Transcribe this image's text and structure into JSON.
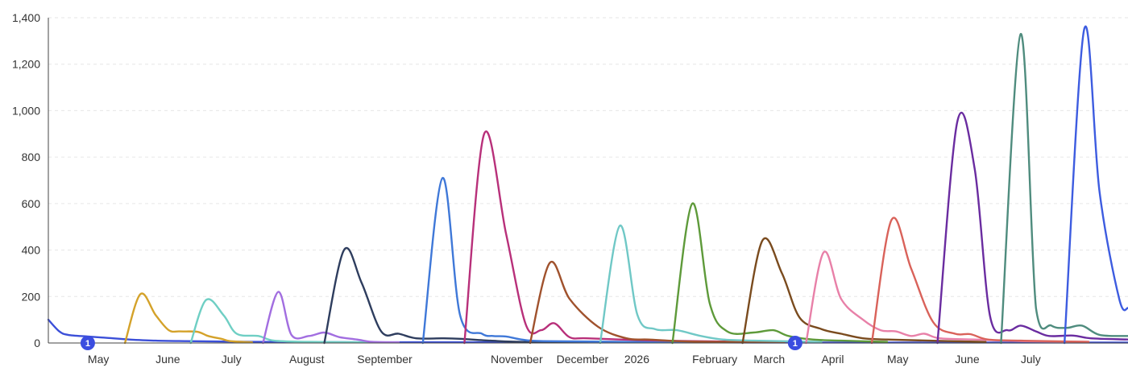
{
  "chart_data": {
    "type": "line",
    "title": "",
    "xlabel": "",
    "ylabel": "",
    "x_range": [
      "2025-04-13",
      "2026-08-19"
    ],
    "ylim": [
      0,
      1400
    ],
    "y_ticks": [
      0,
      200,
      400,
      600,
      800,
      1000,
      1200,
      1400
    ],
    "y_tick_labels": [
      "0",
      "200",
      "400",
      "600",
      "800",
      "1,000",
      "1,200",
      "1,400"
    ],
    "grid": true,
    "x_ticks": [
      {
        "date": "2025-05-01",
        "label": "May"
      },
      {
        "date": "2025-06-01",
        "label": "June"
      },
      {
        "date": "2025-07-01",
        "label": "July"
      },
      {
        "date": "2025-08-01",
        "label": "August"
      },
      {
        "date": "2025-09-01",
        "label": "September"
      },
      {
        "date": "2025-11-01",
        "label": "November"
      },
      {
        "date": "2025-12-01",
        "label": "December"
      },
      {
        "date": "2026-01-01",
        "label": "2026"
      },
      {
        "date": "2026-02-01",
        "label": "February"
      },
      {
        "date": "2026-03-01",
        "label": "March"
      },
      {
        "date": "2026-04-01",
        "label": "April"
      },
      {
        "date": "2026-05-01",
        "label": "May"
      },
      {
        "date": "2026-06-01",
        "label": "June"
      },
      {
        "date": "2026-07-01",
        "label": "July"
      }
    ],
    "markers": [
      {
        "date": "2025-05-01",
        "label": "1"
      },
      {
        "date": "2026-03-20",
        "label": "1"
      }
    ],
    "series": [
      {
        "color": "#3b4fd8",
        "points": [
          [
            "2025-04-13",
            100
          ],
          [
            "2025-04-18",
            50
          ],
          [
            "2025-04-22",
            35
          ],
          [
            "2025-05-01",
            28
          ],
          [
            "2025-05-10",
            22
          ],
          [
            "2025-05-20",
            15
          ],
          [
            "2025-06-01",
            10
          ],
          [
            "2025-06-15",
            8
          ],
          [
            "2025-07-15",
            5
          ],
          [
            "2025-09-01",
            3
          ],
          [
            "2025-11-01",
            3
          ],
          [
            "2026-03-01",
            2
          ],
          [
            "2026-08-19",
            2
          ]
        ]
      },
      {
        "color": "#d4a22a",
        "points": [
          [
            "2025-05-18",
            0
          ],
          [
            "2025-05-25",
            210
          ],
          [
            "2025-06-01",
            120
          ],
          [
            "2025-06-07",
            55
          ],
          [
            "2025-06-12",
            50
          ],
          [
            "2025-06-20",
            48
          ],
          [
            "2025-06-25",
            30
          ],
          [
            "2025-07-01",
            18
          ],
          [
            "2025-07-05",
            8
          ],
          [
            "2025-07-15",
            3
          ]
        ]
      },
      {
        "color": "#6fcfc4",
        "points": [
          [
            "2025-06-17",
            0
          ],
          [
            "2025-06-24",
            185
          ],
          [
            "2025-07-02",
            120
          ],
          [
            "2025-07-08",
            40
          ],
          [
            "2025-07-18",
            30
          ],
          [
            "2025-07-25",
            10
          ],
          [
            "2025-08-10",
            5
          ],
          [
            "2025-09-10",
            3
          ]
        ]
      },
      {
        "color": "#a26ee0",
        "points": [
          [
            "2025-07-20",
            0
          ],
          [
            "2025-07-27",
            220
          ],
          [
            "2025-08-02",
            35
          ],
          [
            "2025-08-10",
            30
          ],
          [
            "2025-08-17",
            45
          ],
          [
            "2025-08-24",
            25
          ],
          [
            "2025-09-01",
            15
          ],
          [
            "2025-09-08",
            5
          ],
          [
            "2025-09-20",
            3
          ]
        ]
      },
      {
        "color": "#2e3d5e",
        "points": [
          [
            "2025-08-17",
            0
          ],
          [
            "2025-08-26",
            400
          ],
          [
            "2025-09-03",
            260
          ],
          [
            "2025-09-12",
            50
          ],
          [
            "2025-09-20",
            40
          ],
          [
            "2025-09-28",
            20
          ],
          [
            "2025-10-10",
            20
          ],
          [
            "2025-10-18",
            18
          ],
          [
            "2025-11-01",
            10
          ],
          [
            "2025-11-15",
            5
          ],
          [
            "2025-12-15",
            3
          ]
        ]
      },
      {
        "color": "#3f78d8",
        "points": [
          [
            "2025-10-01",
            0
          ],
          [
            "2025-10-10",
            710
          ],
          [
            "2025-10-18",
            120
          ],
          [
            "2025-10-28",
            40
          ],
          [
            "2025-11-02",
            30
          ],
          [
            "2025-11-08",
            28
          ],
          [
            "2025-11-15",
            15
          ],
          [
            "2025-11-25",
            8
          ],
          [
            "2026-01-01",
            5
          ],
          [
            "2026-03-01",
            3
          ]
        ]
      },
      {
        "color": "#b8307a",
        "points": [
          [
            "2025-10-20",
            0
          ],
          [
            "2025-10-29",
            900
          ],
          [
            "2025-11-08",
            470
          ],
          [
            "2025-11-17",
            80
          ],
          [
            "2025-11-24",
            55
          ],
          [
            "2025-11-30",
            85
          ],
          [
            "2025-12-07",
            25
          ],
          [
            "2025-12-15",
            20
          ],
          [
            "2026-01-10",
            12
          ],
          [
            "2026-02-01",
            8
          ],
          [
            "2026-03-01",
            5
          ]
        ]
      },
      {
        "color": "#a0522d",
        "points": [
          [
            "2025-11-19",
            0
          ],
          [
            "2025-11-28",
            345
          ],
          [
            "2025-12-07",
            190
          ],
          [
            "2025-12-20",
            70
          ],
          [
            "2026-01-02",
            20
          ],
          [
            "2026-01-12",
            15
          ],
          [
            "2026-01-25",
            8
          ],
          [
            "2026-02-10",
            5
          ],
          [
            "2026-03-15",
            3
          ]
        ]
      },
      {
        "color": "#70c8c6",
        "points": [
          [
            "2025-12-21",
            0
          ],
          [
            "2025-12-30",
            505
          ],
          [
            "2026-01-07",
            120
          ],
          [
            "2026-01-15",
            60
          ],
          [
            "2026-01-25",
            55
          ],
          [
            "2026-02-05",
            30
          ],
          [
            "2026-02-15",
            15
          ],
          [
            "2026-03-01",
            10
          ],
          [
            "2026-04-01",
            5
          ]
        ]
      },
      {
        "color": "#5e9a3a",
        "points": [
          [
            "2026-01-23",
            0
          ],
          [
            "2026-02-01",
            600
          ],
          [
            "2026-02-09",
            170
          ],
          [
            "2026-02-17",
            50
          ],
          [
            "2026-03-01",
            45
          ],
          [
            "2026-03-10",
            55
          ],
          [
            "2026-03-17",
            30
          ],
          [
            "2026-03-28",
            15
          ],
          [
            "2026-04-10",
            10
          ],
          [
            "2026-05-01",
            5
          ]
        ]
      },
      {
        "color": "#7a4b1e",
        "points": [
          [
            "2026-02-24",
            0
          ],
          [
            "2026-03-05",
            440
          ],
          [
            "2026-03-14",
            300
          ],
          [
            "2026-03-22",
            110
          ],
          [
            "2026-04-01",
            60
          ],
          [
            "2026-04-10",
            40
          ],
          [
            "2026-04-20",
            20
          ],
          [
            "2026-05-01",
            15
          ],
          [
            "2026-05-20",
            10
          ],
          [
            "2026-06-15",
            5
          ]
        ]
      },
      {
        "color": "#e880a8",
        "points": [
          [
            "2026-03-25",
            0
          ],
          [
            "2026-04-02",
            390
          ],
          [
            "2026-04-10",
            190
          ],
          [
            "2026-04-20",
            100
          ],
          [
            "2026-04-28",
            55
          ],
          [
            "2026-05-05",
            50
          ],
          [
            "2026-05-12",
            30
          ],
          [
            "2026-05-18",
            40
          ],
          [
            "2026-05-25",
            20
          ],
          [
            "2026-06-10",
            15
          ],
          [
            "2026-07-01",
            8
          ],
          [
            "2026-08-01",
            5
          ]
        ]
      },
      {
        "color": "#d9625a",
        "points": [
          [
            "2026-04-24",
            0
          ],
          [
            "2026-05-03",
            530
          ],
          [
            "2026-05-12",
            320
          ],
          [
            "2026-05-22",
            90
          ],
          [
            "2026-06-01",
            40
          ],
          [
            "2026-06-08",
            38
          ],
          [
            "2026-06-16",
            15
          ],
          [
            "2026-07-01",
            10
          ],
          [
            "2026-08-01",
            5
          ]
        ]
      },
      {
        "color": "#6a2ca0",
        "points": [
          [
            "2026-05-24",
            0
          ],
          [
            "2026-06-02",
            950
          ],
          [
            "2026-06-10",
            750
          ],
          [
            "2026-06-17",
            115
          ],
          [
            "2026-06-25",
            55
          ],
          [
            "2026-07-01",
            75
          ],
          [
            "2026-07-08",
            50
          ],
          [
            "2026-07-14",
            30
          ],
          [
            "2026-07-25",
            32
          ],
          [
            "2026-08-02",
            20
          ],
          [
            "2026-08-19",
            15
          ]
        ]
      },
      {
        "color": "#4f8c7e",
        "points": [
          [
            "2026-06-22",
            0
          ],
          [
            "2026-07-01",
            1330
          ],
          [
            "2026-07-08",
            150
          ],
          [
            "2026-07-15",
            75
          ],
          [
            "2026-07-22",
            65
          ],
          [
            "2026-07-29",
            75
          ],
          [
            "2026-08-06",
            35
          ],
          [
            "2026-08-19",
            30
          ]
        ]
      },
      {
        "color": "#3d5ce0",
        "points": [
          [
            "2026-07-21",
            0
          ],
          [
            "2026-07-30",
            1350
          ],
          [
            "2026-08-06",
            650
          ],
          [
            "2026-08-15",
            190
          ],
          [
            "2026-08-19",
            150
          ]
        ]
      }
    ]
  }
}
